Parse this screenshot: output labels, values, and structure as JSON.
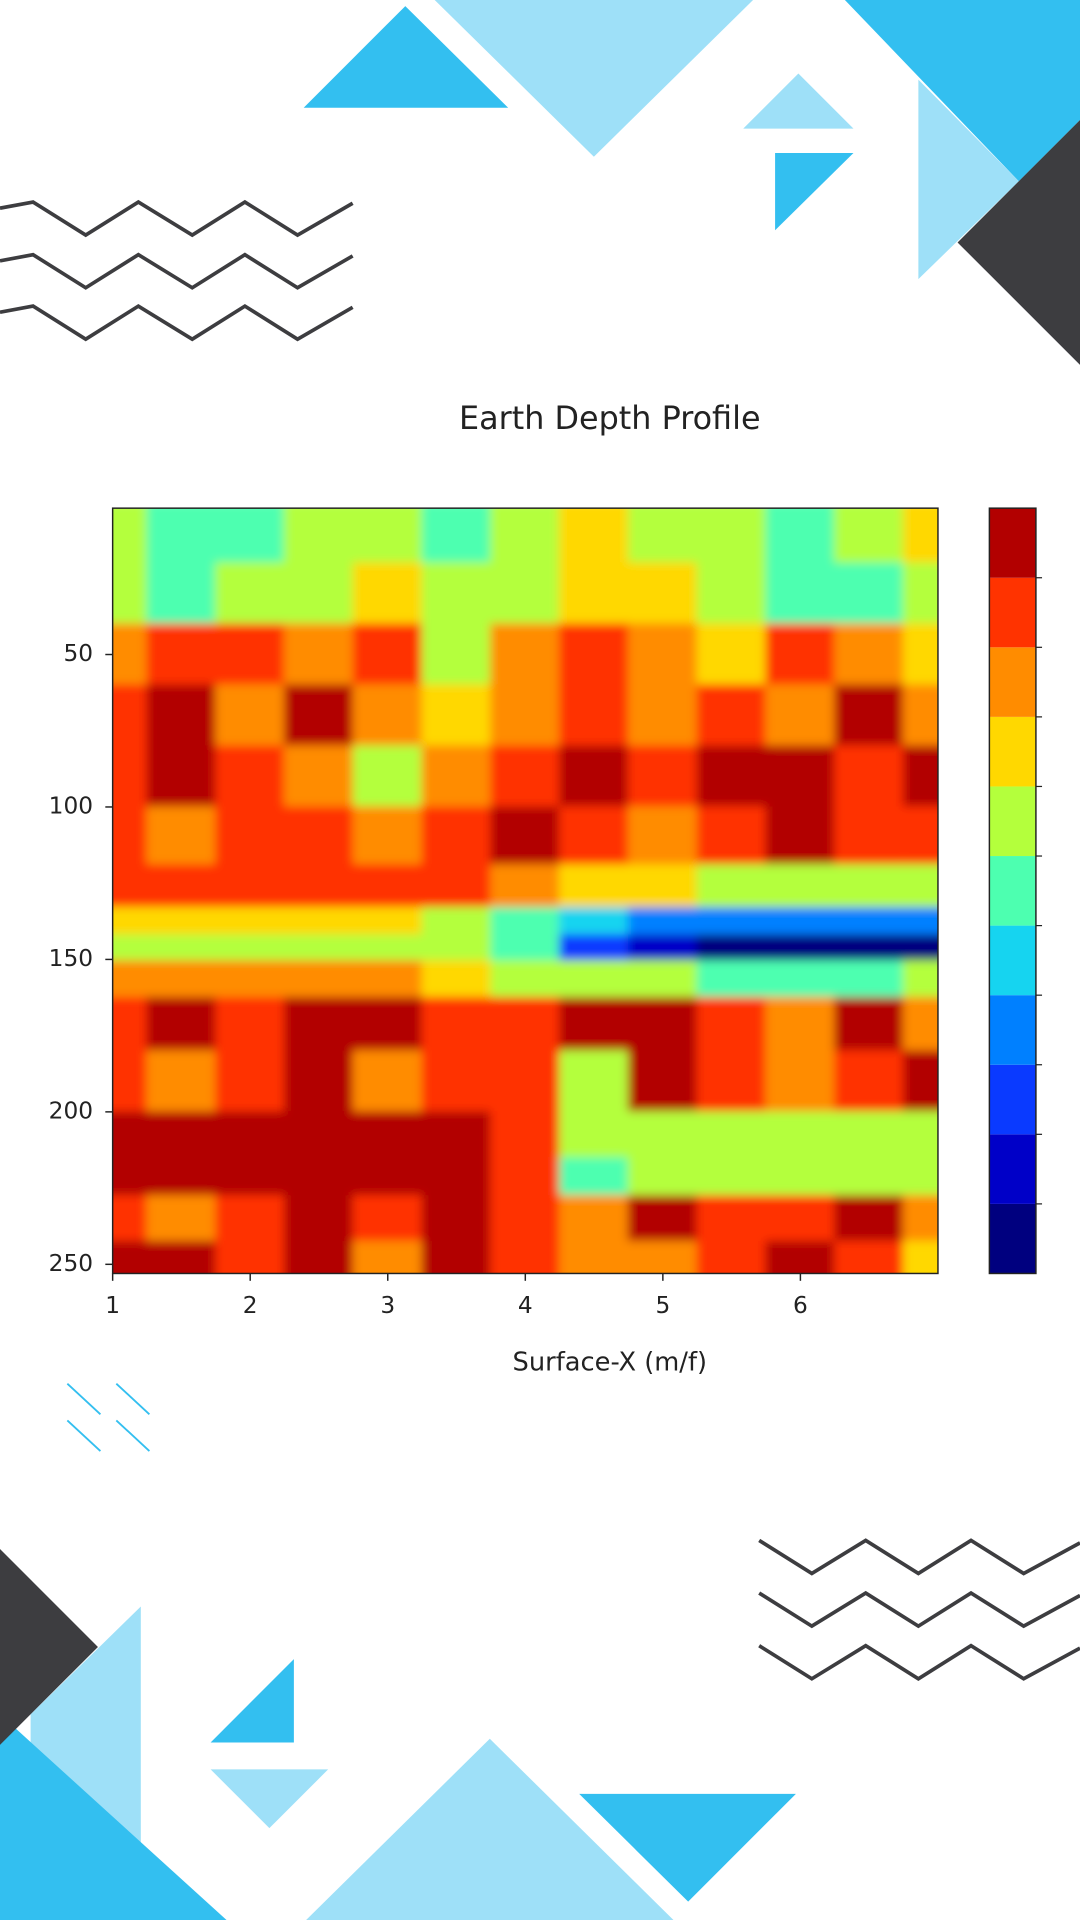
{
  "chart_data": {
    "type": "contourf",
    "title": "Earth Depth Profile",
    "xlabel": "Surface-X (m/f)",
    "x": [
      1,
      1.5,
      2,
      2.5,
      3,
      3.5,
      4,
      4.5,
      5,
      5.5,
      6,
      6.5,
      7
    ],
    "y": [
      10,
      30,
      50,
      70,
      90,
      110,
      128,
      138,
      146,
      155,
      170,
      190,
      210,
      220,
      235,
      250
    ],
    "z": [
      [
        6,
        5,
        5,
        6,
        6,
        5,
        6,
        7,
        6,
        6,
        5,
        6,
        7
      ],
      [
        6,
        5,
        6,
        6,
        7,
        6,
        6,
        7,
        7,
        6,
        5,
        5,
        6
      ],
      [
        8,
        9,
        9,
        8,
        9,
        6,
        8,
        9,
        8,
        7,
        9,
        8,
        7
      ],
      [
        9,
        10,
        8,
        10,
        8,
        7,
        8,
        9,
        8,
        9,
        8,
        10,
        8
      ],
      [
        9,
        10,
        9,
        8,
        6,
        8,
        9,
        10,
        9,
        10,
        10,
        9,
        10
      ],
      [
        9,
        8,
        9,
        9,
        8,
        9,
        10,
        9,
        8,
        9,
        10,
        9,
        9
      ],
      [
        9,
        9,
        9,
        9,
        9,
        9,
        8,
        7,
        7,
        6,
        6,
        6,
        6
      ],
      [
        7,
        7,
        7,
        7,
        7,
        6,
        5,
        4,
        3,
        3,
        3,
        3,
        3
      ],
      [
        6,
        6,
        6,
        6,
        6,
        6,
        5,
        2,
        1,
        0,
        0,
        0,
        0
      ],
      [
        8,
        8,
        8,
        8,
        8,
        7,
        6,
        6,
        6,
        5,
        5,
        5,
        6
      ],
      [
        9,
        10,
        9,
        10,
        10,
        9,
        9,
        10,
        10,
        9,
        8,
        10,
        8
      ],
      [
        9,
        8,
        9,
        10,
        8,
        9,
        9,
        6,
        10,
        9,
        8,
        9,
        10
      ],
      [
        10,
        10,
        10,
        10,
        10,
        10,
        9,
        6,
        6,
        6,
        6,
        6,
        6
      ],
      [
        10,
        10,
        10,
        10,
        10,
        10,
        9,
        5,
        6,
        6,
        6,
        6,
        6
      ],
      [
        9,
        8,
        9,
        10,
        9,
        10,
        9,
        8,
        10,
        9,
        9,
        10,
        8
      ],
      [
        10,
        10,
        9,
        10,
        8,
        10,
        9,
        8,
        8,
        9,
        10,
        9,
        7
      ]
    ],
    "colors": [
      "#00007f",
      "#0000c8",
      "#0a3aff",
      "#0080ff",
      "#16d4f0",
      "#4dffb0",
      "#b4ff3c",
      "#ffd800",
      "#ff8c00",
      "#ff3300",
      "#b20000"
    ],
    "zlim": [
      0,
      11
    ],
    "colorbar_ticks": [
      1,
      2,
      3,
      4,
      5,
      6,
      7,
      8,
      9,
      10
    ],
    "xlim": [
      1,
      7
    ],
    "xticks": [
      1,
      2,
      3,
      4,
      5,
      6
    ],
    "ylim": [
      2,
      253
    ],
    "y_inverted": true,
    "yticks": [
      50,
      100,
      150,
      200,
      250
    ]
  }
}
